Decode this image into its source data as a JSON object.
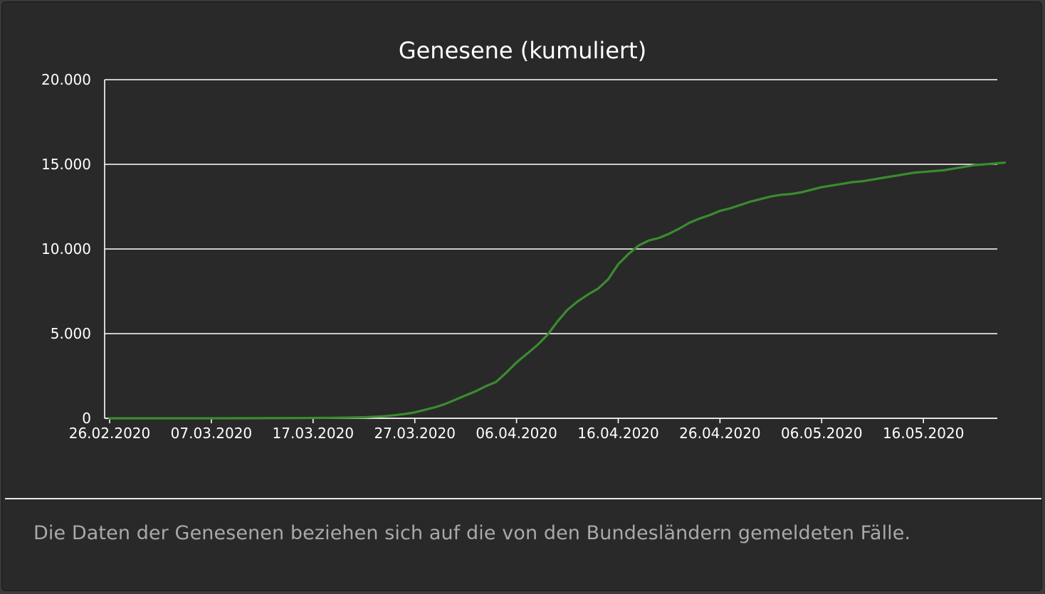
{
  "chart_data": {
    "type": "line",
    "title": "Genesene (kumuliert)",
    "xlabel": "",
    "ylabel": "",
    "x_start": "26.02.2020",
    "x_end": "24.05.2020",
    "ylim": [
      0,
      20000
    ],
    "y_ticks": [
      0,
      5000,
      10000,
      15000,
      20000
    ],
    "y_tick_labels": [
      "0",
      "5.000",
      "10.000",
      "15.000",
      "20.000"
    ],
    "x_tick_labels": [
      "26.02.2020",
      "07.03.2020",
      "17.03.2020",
      "27.03.2020",
      "06.04.2020",
      "16.04.2020",
      "26.04.2020",
      "06.05.2020",
      "16.05.2020"
    ],
    "grid": true,
    "line_color": "#3a8c2f",
    "series": [
      {
        "points": [
          [
            "26.02.2020",
            0
          ],
          [
            "01.03.2020",
            0
          ],
          [
            "06.03.2020",
            0
          ],
          [
            "11.03.2020",
            5
          ],
          [
            "16.03.2020",
            15
          ],
          [
            "19.03.2020",
            30
          ],
          [
            "22.03.2020",
            60
          ],
          [
            "24.03.2020",
            120
          ],
          [
            "25.03.2020",
            180
          ],
          [
            "26.03.2020",
            250
          ],
          [
            "27.03.2020",
            350
          ],
          [
            "28.03.2020",
            500
          ],
          [
            "29.03.2020",
            650
          ],
          [
            "30.03.2020",
            850
          ],
          [
            "31.03.2020",
            1100
          ],
          [
            "01.04.2020",
            1350
          ],
          [
            "02.04.2020",
            1600
          ],
          [
            "03.04.2020",
            1900
          ],
          [
            "04.04.2020",
            2150
          ],
          [
            "05.04.2020",
            2700
          ],
          [
            "06.04.2020",
            3300
          ],
          [
            "07.04.2020",
            3800
          ],
          [
            "08.04.2020",
            4300
          ],
          [
            "09.04.2020",
            4900
          ],
          [
            "10.04.2020",
            5700
          ],
          [
            "11.04.2020",
            6400
          ],
          [
            "12.04.2020",
            6900
          ],
          [
            "13.04.2020",
            7300
          ],
          [
            "14.04.2020",
            7650
          ],
          [
            "15.04.2020",
            8200
          ],
          [
            "16.04.2020",
            9100
          ],
          [
            "17.04.2020",
            9700
          ],
          [
            "18.04.2020",
            10200
          ],
          [
            "19.04.2020",
            10500
          ],
          [
            "20.04.2020",
            10650
          ],
          [
            "21.04.2020",
            10900
          ],
          [
            "22.04.2020",
            11200
          ],
          [
            "23.04.2020",
            11550
          ],
          [
            "24.04.2020",
            11800
          ],
          [
            "25.04.2020",
            12000
          ],
          [
            "26.04.2020",
            12250
          ],
          [
            "27.04.2020",
            12400
          ],
          [
            "28.04.2020",
            12600
          ],
          [
            "29.04.2020",
            12800
          ],
          [
            "30.04.2020",
            12950
          ],
          [
            "01.05.2020",
            13100
          ],
          [
            "02.05.2020",
            13200
          ],
          [
            "03.05.2020",
            13250
          ],
          [
            "04.05.2020",
            13350
          ],
          [
            "05.05.2020",
            13500
          ],
          [
            "06.05.2020",
            13650
          ],
          [
            "07.05.2020",
            13750
          ],
          [
            "08.05.2020",
            13850
          ],
          [
            "09.05.2020",
            13950
          ],
          [
            "10.05.2020",
            14000
          ],
          [
            "11.05.2020",
            14100
          ],
          [
            "12.05.2020",
            14200
          ],
          [
            "13.05.2020",
            14300
          ],
          [
            "14.05.2020",
            14400
          ],
          [
            "15.05.2020",
            14500
          ],
          [
            "16.05.2020",
            14550
          ],
          [
            "17.05.2020",
            14600
          ],
          [
            "18.05.2020",
            14650
          ],
          [
            "19.05.2020",
            14750
          ],
          [
            "20.05.2020",
            14850
          ],
          [
            "21.05.2020",
            14950
          ],
          [
            "22.05.2020",
            15000
          ],
          [
            "23.05.2020",
            15050
          ],
          [
            "24.05.2020",
            15100
          ]
        ]
      }
    ]
  },
  "footnote": "Die Daten der Genesenen beziehen sich auf die von den Bundesländern gemeldeten Fälle."
}
